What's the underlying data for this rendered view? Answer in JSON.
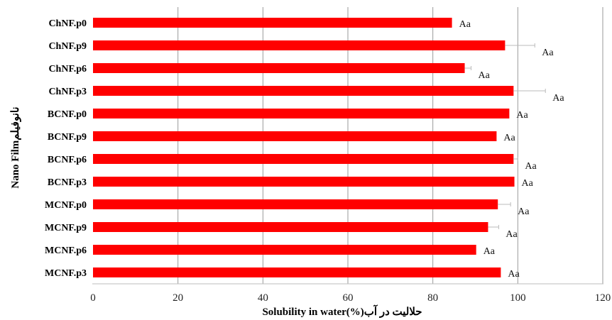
{
  "chart_data": {
    "type": "bar",
    "orientation": "horizontal",
    "categories": [
      "ChNF.p0",
      "ChNF.p9",
      "ChNF.p6",
      "ChNF.p3",
      "BCNF.p0",
      "BCNF.p9",
      "BCNF.p6",
      "BCNF.p3",
      "MCNF.p0",
      "MCNF.p9",
      "MCNF.p6",
      "MCNF.p3"
    ],
    "values": [
      84.5,
      97,
      87.5,
      99,
      98,
      95,
      99,
      99.2,
      95.3,
      93,
      90.2,
      96
    ],
    "error_upper": [
      0,
      7,
      1.5,
      7.5,
      0,
      0,
      1,
      0,
      3,
      2.5,
      0,
      0
    ],
    "data_labels": [
      "Aa",
      "Aa",
      "Aa",
      "Aa",
      "Aa",
      "Aa",
      "Aa",
      "Aa",
      "Aa",
      "Aa",
      "Aa",
      "Aa"
    ],
    "xlabel": "Solubility in water(%)حلالیت در آب",
    "ylabel": "Nano Filmنانوفیلم",
    "xlim": [
      0,
      120
    ],
    "xticks": [
      "0",
      "20",
      "40",
      "60",
      "80",
      "100",
      "120"
    ],
    "grid": "vertical",
    "bar_color": "#ff0000",
    "grid_color": "#9a9a9a"
  }
}
